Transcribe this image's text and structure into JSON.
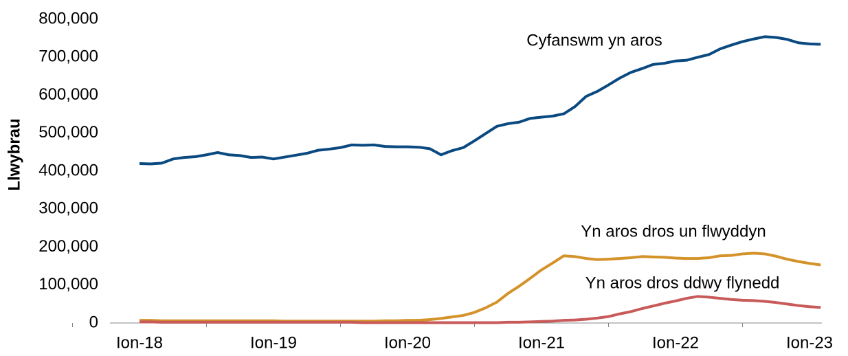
{
  "chart_data": {
    "type": "line",
    "y_label": "Llwybrau",
    "categories": [
      "Ion-18",
      null,
      null,
      null,
      null,
      null,
      null,
      null,
      null,
      null,
      null,
      null,
      "Ion-19",
      null,
      null,
      null,
      null,
      null,
      null,
      null,
      null,
      null,
      null,
      null,
      "Ion-20",
      null,
      null,
      null,
      null,
      null,
      null,
      null,
      null,
      null,
      null,
      null,
      "Ion-21",
      null,
      null,
      null,
      null,
      null,
      null,
      null,
      null,
      null,
      null,
      null,
      "Ion-22",
      null,
      null,
      null,
      null,
      null,
      null,
      null,
      null,
      null,
      null,
      null,
      "Ion-23",
      null
    ],
    "series": [
      {
        "name": "Cyfanswm yn aros",
        "color": "#0b4a80",
        "values": [
          420000,
          419000,
          421000,
          432000,
          436000,
          438000,
          443000,
          449000,
          443000,
          441000,
          436000,
          437000,
          432000,
          437000,
          442000,
          447000,
          455000,
          458000,
          462000,
          469000,
          468000,
          469000,
          465000,
          464000,
          464000,
          463000,
          459000,
          443000,
          454000,
          462000,
          480000,
          499000,
          518000,
          525000,
          529000,
          539000,
          542000,
          545000,
          551000,
          570000,
          597000,
          610000,
          627000,
          645000,
          660000,
          670000,
          681000,
          684000,
          690000,
          692000,
          700000,
          707000,
          722000,
          732000,
          741000,
          748000,
          754000,
          752000,
          747000,
          738000,
          735000,
          734000
        ]
      },
      {
        "name": "Yn aros dros un flwyddyn",
        "color": "#d4922a",
        "values": [
          7000,
          7000,
          6000,
          6000,
          6000,
          6000,
          6000,
          6000,
          6000,
          6000,
          6000,
          6000,
          6000,
          5000,
          5000,
          5000,
          5000,
          5000,
          5000,
          5000,
          5000,
          5000,
          6000,
          6000,
          7000,
          7000,
          9000,
          12000,
          16000,
          20000,
          28000,
          40000,
          55000,
          78000,
          97000,
          118000,
          140000,
          158000,
          177000,
          175000,
          170000,
          167000,
          168000,
          170000,
          172000,
          175000,
          174000,
          173000,
          171000,
          170000,
          170000,
          172000,
          177000,
          178000,
          182000,
          184000,
          182000,
          176000,
          168000,
          162000,
          157000,
          153000
        ]
      },
      {
        "name": "Yn aros dros ddwy flynedd",
        "color": "#c85a5a",
        "values": [
          3000,
          3000,
          2000,
          2000,
          2000,
          2000,
          2000,
          2000,
          2000,
          2000,
          2000,
          2000,
          2000,
          2000,
          2000,
          2000,
          2000,
          2000,
          2000,
          2000,
          1000,
          1000,
          1000,
          1000,
          1000,
          1000,
          1000,
          1000,
          1000,
          1000,
          1000,
          1000,
          1000,
          2000,
          2000,
          3000,
          4000,
          5000,
          7000,
          8000,
          10000,
          13000,
          17000,
          24000,
          30000,
          38000,
          45000,
          52000,
          58000,
          65000,
          70000,
          68000,
          65000,
          62000,
          60000,
          59000,
          57000,
          54000,
          50000,
          46000,
          43000,
          41000
        ]
      }
    ],
    "ylim": [
      0,
      800000
    ],
    "yticks": [
      0,
      {
        "value": 100000,
        "label": "100,000"
      },
      {
        "value": 200000,
        "label": "200,000"
      },
      {
        "value": 300000,
        "label": "300,000"
      },
      {
        "value": 400000,
        "label": "400,000"
      },
      {
        "value": 500000,
        "label": "500,000"
      },
      {
        "value": 600000,
        "label": "600,000"
      },
      {
        "value": 700000,
        "label": "700,000"
      },
      {
        "value": 800000,
        "label": "800,000"
      }
    ],
    "grid": false
  }
}
